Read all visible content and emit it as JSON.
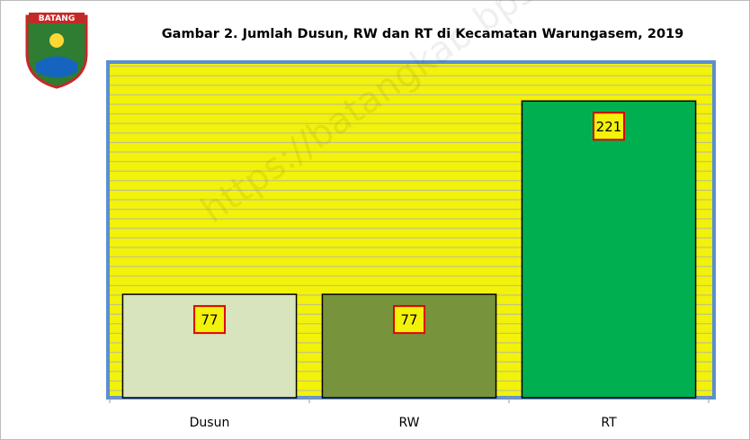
{
  "logo_text": "BATANG",
  "watermark": "https://batangkab.bps.go.id",
  "chart_data": {
    "type": "bar",
    "title": "Gambar 2. Jumlah Dusun, RW dan RT di Kecamatan Warungasem, 2019",
    "categories": [
      "Dusun",
      "RW",
      "RT"
    ],
    "values": [
      77,
      77,
      221
    ],
    "colors": [
      "#d7e4bd",
      "#77933c",
      "#00b050"
    ],
    "ylim": [
      0,
      250
    ]
  }
}
